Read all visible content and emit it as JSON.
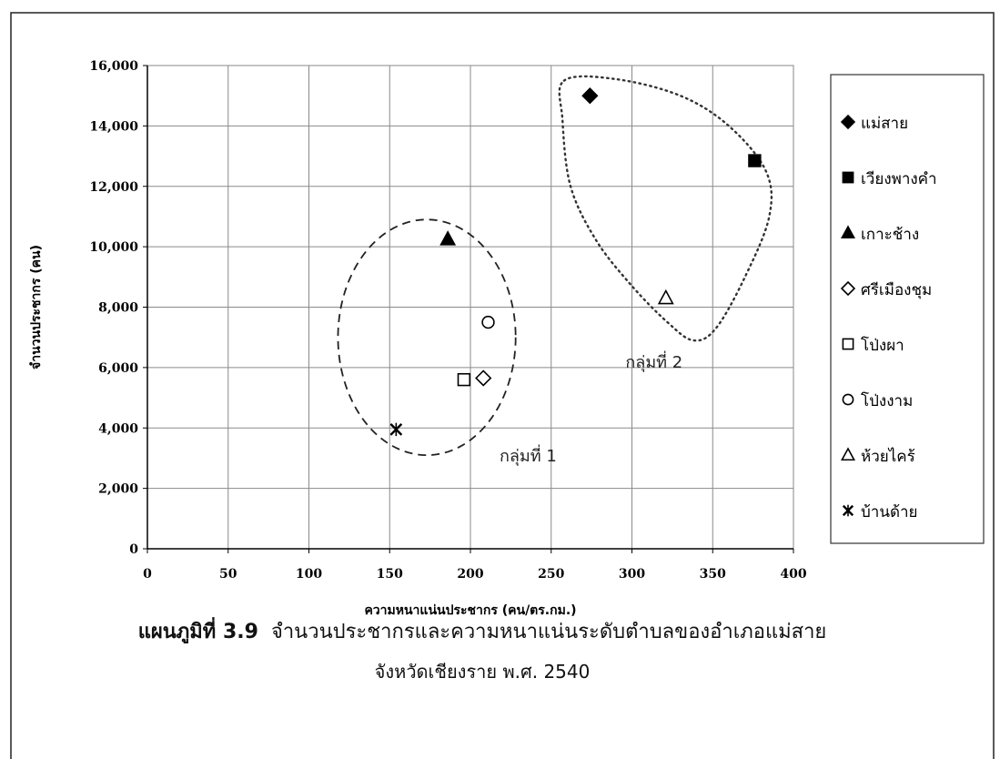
{
  "chart_data": {
    "type": "scatter",
    "xlabel": "ความหนาแน่นประชากร (คน/ตร.กม.)",
    "ylabel": "จำนวนประชากร (คน)",
    "xlim": [
      0,
      400
    ],
    "ylim": [
      0,
      16000
    ],
    "x_ticks": [
      "0",
      "50",
      "100",
      "150",
      "200",
      "250",
      "300",
      "350",
      "400"
    ],
    "y_ticks": [
      "0",
      "2,000",
      "4,000",
      "6,000",
      "8,000",
      "10,000",
      "12,000",
      "14,000",
      "16,000"
    ],
    "grid": true,
    "legend_position": "right",
    "series": [
      {
        "name": "แม่สาย",
        "marker": "diamond-filled",
        "x": [
          274
        ],
        "y": [
          15000
        ]
      },
      {
        "name": "เวียงพางคำ",
        "marker": "square-filled",
        "x": [
          376
        ],
        "y": [
          12850
        ]
      },
      {
        "name": "เกาะช้าง",
        "marker": "triangle-filled",
        "x": [
          186
        ],
        "y": [
          10250
        ]
      },
      {
        "name": "ศรีเมืองชุม",
        "marker": "diamond-open",
        "x": [
          208
        ],
        "y": [
          5650
        ]
      },
      {
        "name": "โป่งผา",
        "marker": "square-open",
        "x": [
          196
        ],
        "y": [
          5600
        ]
      },
      {
        "name": "โป่งงาม",
        "marker": "circle-open",
        "x": [
          211
        ],
        "y": [
          7500
        ]
      },
      {
        "name": "ห้วยไคร้",
        "marker": "triangle-open",
        "x": [
          321
        ],
        "y": [
          8300
        ]
      },
      {
        "name": "บ้านด้าย",
        "marker": "x-star",
        "x": [
          154
        ],
        "y": [
          3950
        ]
      }
    ],
    "annotations": [
      {
        "text": "กลุ่มที่ 1",
        "x": 218,
        "y": 2900
      },
      {
        "text": "กลุ่มที่ 2",
        "x": 296,
        "y": 6000
      }
    ],
    "groups": [
      {
        "name": "group1",
        "style": "dashed",
        "cx": 173,
        "cy": 7000,
        "rx": 55,
        "ry": 3900
      },
      {
        "name": "group2",
        "style": "dotted"
      }
    ]
  },
  "caption": {
    "label": "แผนภูมิที่ 3.9",
    "line1": "จำนวนประชากรและความหนาแน่นระดับตำบลของอำเภอแม่สาย",
    "line2": "จังหวัดเชียงราย พ.ศ. 2540"
  }
}
